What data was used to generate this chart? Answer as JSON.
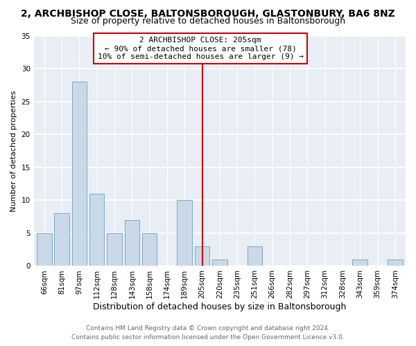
{
  "title": "2, ARCHBISHOP CLOSE, BALTONSBOROUGH, GLASTONBURY, BA6 8NZ",
  "subtitle": "Size of property relative to detached houses in Baltonsborough",
  "xlabel": "Distribution of detached houses by size in Baltonsborough",
  "ylabel": "Number of detached properties",
  "footer_line1": "Contains HM Land Registry data © Crown copyright and database right 2024.",
  "footer_line2": "Contains public sector information licensed under the Open Government Licence v3.0.",
  "bar_labels": [
    "66sqm",
    "81sqm",
    "97sqm",
    "112sqm",
    "128sqm",
    "143sqm",
    "158sqm",
    "174sqm",
    "189sqm",
    "205sqm",
    "220sqm",
    "235sqm",
    "251sqm",
    "266sqm",
    "282sqm",
    "297sqm",
    "312sqm",
    "328sqm",
    "343sqm",
    "359sqm",
    "374sqm"
  ],
  "bar_values": [
    5,
    8,
    28,
    11,
    5,
    7,
    5,
    0,
    10,
    3,
    1,
    0,
    3,
    0,
    0,
    0,
    0,
    0,
    1,
    0,
    1
  ],
  "bar_color": "#c9d9e8",
  "bar_edge_color": "#7aaac8",
  "highlight_index": 9,
  "highlight_line_color": "#cc0000",
  "annotation_title": "2 ARCHBISHOP CLOSE: 205sqm",
  "annotation_line1": "← 90% of detached houses are smaller (78)",
  "annotation_line2": "10% of semi-detached houses are larger (9) →",
  "annotation_box_edge": "#cc0000",
  "ylim": [
    0,
    35
  ],
  "yticks": [
    0,
    5,
    10,
    15,
    20,
    25,
    30,
    35
  ],
  "background_color": "#ffffff",
  "plot_bg_color": "#e8eef4",
  "grid_color": "#ffffff",
  "title_fontsize": 10,
  "subtitle_fontsize": 9,
  "xlabel_fontsize": 9,
  "ylabel_fontsize": 8,
  "tick_fontsize": 7.5,
  "footer_fontsize": 6.5,
  "annotation_fontsize": 8
}
